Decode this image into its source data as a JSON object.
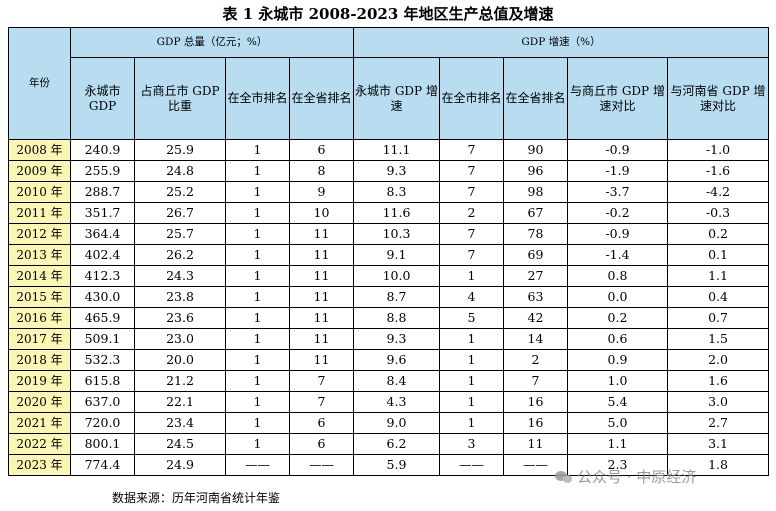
{
  "title": "表 1  永城市 2008-2023 年地区生产总值及增速",
  "headers": {
    "year": "年份",
    "group_gdp": "GDP 总量（亿元；%）",
    "group_growth": "GDP 增速（%）",
    "columns": [
      "永城市 GDP",
      "占商丘市 GDP 比重",
      "在全市排名",
      "在全省排名",
      "永城市 GDP 增速",
      "在全市排名",
      "在全省排名",
      "与商丘市 GDP 增速对比",
      "与河南省 GDP 增速对比"
    ]
  },
  "rows": [
    {
      "year": "2008 年",
      "gdp": "240.9",
      "share": "25.9",
      "city_rank": "1",
      "prov_rank": "6",
      "growth": "11.1",
      "growth_city_rank": "7",
      "growth_prov_rank": "90",
      "vs_shangqiu": "-0.9",
      "vs_henan": "-1.0"
    },
    {
      "year": "2009 年",
      "gdp": "255.9",
      "share": "24.8",
      "city_rank": "1",
      "prov_rank": "8",
      "growth": "9.3",
      "growth_city_rank": "7",
      "growth_prov_rank": "96",
      "vs_shangqiu": "-1.9",
      "vs_henan": "-1.6"
    },
    {
      "year": "2010 年",
      "gdp": "288.7",
      "share": "25.2",
      "city_rank": "1",
      "prov_rank": "9",
      "growth": "8.3",
      "growth_city_rank": "7",
      "growth_prov_rank": "98",
      "vs_shangqiu": "-3.7",
      "vs_henan": "-4.2"
    },
    {
      "year": "2011 年",
      "gdp": "351.7",
      "share": "26.7",
      "city_rank": "1",
      "prov_rank": "10",
      "growth": "11.6",
      "growth_city_rank": "2",
      "growth_prov_rank": "67",
      "vs_shangqiu": "-0.2",
      "vs_henan": "-0.3"
    },
    {
      "year": "2012 年",
      "gdp": "364.4",
      "share": "25.7",
      "city_rank": "1",
      "prov_rank": "11",
      "growth": "10.3",
      "growth_city_rank": "7",
      "growth_prov_rank": "78",
      "vs_shangqiu": "-0.9",
      "vs_henan": "0.2"
    },
    {
      "year": "2013 年",
      "gdp": "402.4",
      "share": "26.2",
      "city_rank": "1",
      "prov_rank": "11",
      "growth": "9.1",
      "growth_city_rank": "7",
      "growth_prov_rank": "69",
      "vs_shangqiu": "-1.4",
      "vs_henan": "0.1"
    },
    {
      "year": "2014 年",
      "gdp": "412.3",
      "share": "24.3",
      "city_rank": "1",
      "prov_rank": "11",
      "growth": "10.0",
      "growth_city_rank": "1",
      "growth_prov_rank": "27",
      "vs_shangqiu": "0.8",
      "vs_henan": "1.1"
    },
    {
      "year": "2015 年",
      "gdp": "430.0",
      "share": "23.8",
      "city_rank": "1",
      "prov_rank": "11",
      "growth": "8.7",
      "growth_city_rank": "4",
      "growth_prov_rank": "63",
      "vs_shangqiu": "0.0",
      "vs_henan": "0.4"
    },
    {
      "year": "2016 年",
      "gdp": "465.9",
      "share": "23.6",
      "city_rank": "1",
      "prov_rank": "11",
      "growth": "8.8",
      "growth_city_rank": "5",
      "growth_prov_rank": "42",
      "vs_shangqiu": "0.2",
      "vs_henan": "0.7"
    },
    {
      "year": "2017 年",
      "gdp": "509.1",
      "share": "23.0",
      "city_rank": "1",
      "prov_rank": "11",
      "growth": "9.3",
      "growth_city_rank": "1",
      "growth_prov_rank": "14",
      "vs_shangqiu": "0.6",
      "vs_henan": "1.5"
    },
    {
      "year": "2018 年",
      "gdp": "532.3",
      "share": "20.0",
      "city_rank": "1",
      "prov_rank": "11",
      "growth": "9.6",
      "growth_city_rank": "1",
      "growth_prov_rank": "2",
      "vs_shangqiu": "0.9",
      "vs_henan": "2.0"
    },
    {
      "year": "2019 年",
      "gdp": "615.8",
      "share": "21.2",
      "city_rank": "1",
      "prov_rank": "7",
      "growth": "8.4",
      "growth_city_rank": "1",
      "growth_prov_rank": "7",
      "vs_shangqiu": "1.0",
      "vs_henan": "1.6"
    },
    {
      "year": "2020 年",
      "gdp": "637.0",
      "share": "22.1",
      "city_rank": "1",
      "prov_rank": "7",
      "growth": "4.3",
      "growth_city_rank": "1",
      "growth_prov_rank": "16",
      "vs_shangqiu": "5.4",
      "vs_henan": "3.0"
    },
    {
      "year": "2021 年",
      "gdp": "720.0",
      "share": "23.4",
      "city_rank": "1",
      "prov_rank": "6",
      "growth": "9.0",
      "growth_city_rank": "1",
      "growth_prov_rank": "16",
      "vs_shangqiu": "5.0",
      "vs_henan": "2.7"
    },
    {
      "year": "2022 年",
      "gdp": "800.1",
      "share": "24.5",
      "city_rank": "1",
      "prov_rank": "6",
      "growth": "6.2",
      "growth_city_rank": "3",
      "growth_prov_rank": "11",
      "vs_shangqiu": "1.1",
      "vs_henan": "3.1"
    },
    {
      "year": "2023 年",
      "gdp": "774.4",
      "share": "24.9",
      "city_rank": "——",
      "prov_rank": "——",
      "growth": "5.9",
      "growth_city_rank": "——",
      "growth_prov_rank": "——",
      "vs_shangqiu": "2.3",
      "vs_henan": "1.8"
    }
  ],
  "source": "数据来源：历年河南省统计年鉴",
  "watermark": {
    "icon": "wechat-icon",
    "text": "公众号 · 中原经济"
  },
  "colors": {
    "header_bg": "#b8dcf0",
    "year_bg": "#fbf6b4"
  }
}
